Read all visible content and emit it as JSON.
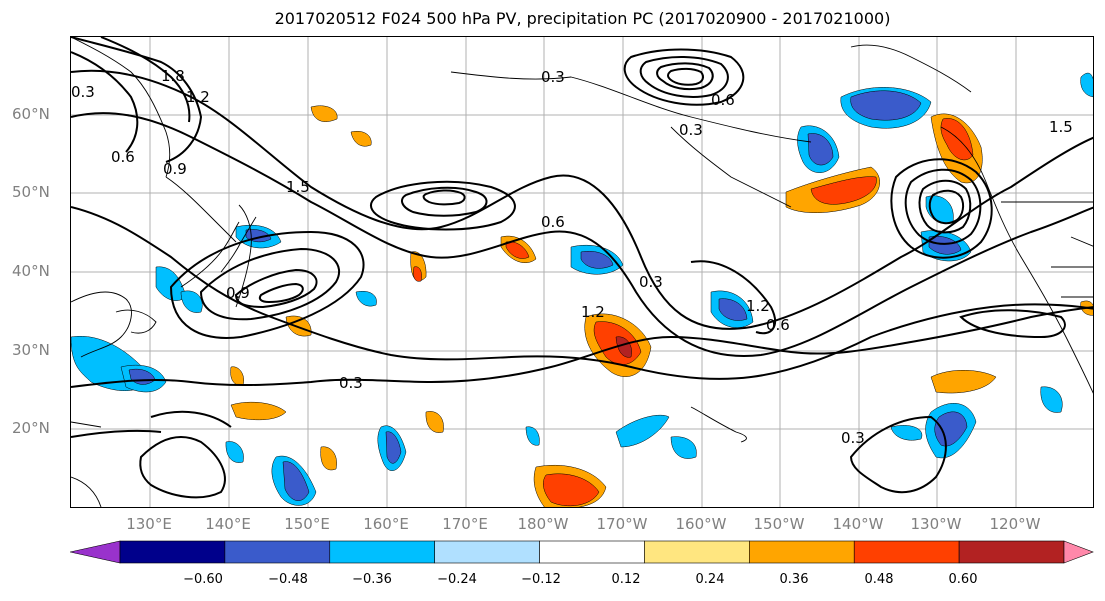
{
  "title": "2017020512 F024 500 hPa PV, precipitation PC (2017020900 - 2017021000)",
  "lat_labels": [
    "60°N",
    "50°N",
    "40°N",
    "30°N",
    "20°N"
  ],
  "lon_labels": [
    "130°E",
    "140°E",
    "150°E",
    "160°E",
    "170°E",
    "180°W",
    "170°W",
    "160°W",
    "150°W",
    "140°W",
    "130°W",
    "120°W"
  ],
  "contour_labels": [
    "1.8",
    "1.2",
    "0.6",
    "0.3",
    "0.9",
    "1.5",
    "0.6",
    "0.3",
    "1.2",
    "0.6",
    "0.3",
    "0.3",
    "0.3",
    "1.5",
    "0.9",
    "0.6",
    "0.3",
    "1.2"
  ],
  "colorbar": {
    "colors": [
      "#9932CC",
      "#00008B",
      "#3A5BCB",
      "#00BFFF",
      "#B0E0FF",
      "#FFFFFF",
      "#FFE680",
      "#FFA500",
      "#FF4000",
      "#B22222",
      "#FF88AA"
    ],
    "tick_labels": [
      "−0.60",
      "−0.48",
      "−0.36",
      "−0.24",
      "−0.12",
      "0.12",
      "0.24",
      "0.36",
      "0.48",
      "0.60"
    ]
  }
}
